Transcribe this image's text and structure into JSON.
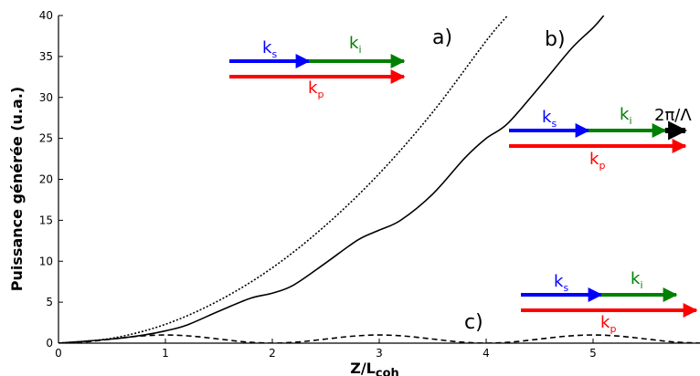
{
  "chart_data": {
    "type": "line",
    "xlabel_main": "Z/L",
    "xlabel_sub": "coh",
    "ylabel": "Puissance générée (u.a.)",
    "xlim": [
      0,
      6
    ],
    "ylim": [
      0,
      40
    ],
    "xticks": [
      0,
      1,
      2,
      3,
      4,
      5
    ],
    "yticks": [
      0,
      5,
      10,
      15,
      20,
      25,
      30,
      35,
      40
    ],
    "grid": false,
    "series": [
      {
        "name": "a)",
        "style": "dotted",
        "color": "#000000",
        "x": [
          0,
          0.5,
          1,
          1.5,
          2,
          2.5,
          3,
          3.5,
          4,
          4.2
        ],
        "y": [
          0,
          0.6,
          2.3,
          5.2,
          9.2,
          14.4,
          20.7,
          28.2,
          36.9,
          40
        ]
      },
      {
        "name": "b)",
        "style": "solid",
        "color": "#000000",
        "x": [
          0,
          0.5,
          0.8,
          1,
          1.2,
          1.5,
          1.8,
          2,
          2.2,
          2.5,
          2.8,
          3,
          3.2,
          3.5,
          3.8,
          4,
          4.2,
          4.5,
          4.8,
          5,
          5.1
        ],
        "y": [
          0,
          0.5,
          1.0,
          1.5,
          2.2,
          3.9,
          5.5,
          6.1,
          7.1,
          9.8,
          12.6,
          13.8,
          15.0,
          18.2,
          22.6,
          25.0,
          26.8,
          31.3,
          36.0,
          38.5,
          40
        ]
      },
      {
        "name": "c)",
        "style": "dashed",
        "color": "#000000",
        "x": [
          0,
          0.25,
          0.5,
          0.75,
          1,
          1.25,
          1.5,
          1.75,
          2,
          2.25,
          2.5,
          2.75,
          3,
          3.25,
          3.5,
          3.75,
          4,
          4.25,
          4.5,
          4.75,
          5,
          5.25,
          5.5,
          5.75,
          6
        ],
        "y": [
          0,
          0.15,
          0.5,
          0.85,
          1.0,
          0.85,
          0.5,
          0.15,
          0,
          0.15,
          0.5,
          0.85,
          1.0,
          0.85,
          0.5,
          0.15,
          0,
          0.15,
          0.5,
          0.85,
          1.0,
          0.85,
          0.5,
          0.15,
          0
        ]
      }
    ],
    "annotations": [
      {
        "id": "a",
        "curve_label": "a)",
        "vectors": [
          {
            "main": "k",
            "sub": "s",
            "color": "#0000ff"
          },
          {
            "main": "k",
            "sub": "i",
            "color": "#008000"
          },
          {
            "main": "k",
            "sub": "p",
            "color": "#ff0000"
          }
        ]
      },
      {
        "id": "b",
        "curve_label": "b)",
        "vectors": [
          {
            "main": "k",
            "sub": "s",
            "color": "#0000ff"
          },
          {
            "main": "k",
            "sub": "i",
            "color": "#008000"
          },
          {
            "main": "2π/Λ",
            "sub": "",
            "color": "#000000"
          },
          {
            "main": "k",
            "sub": "p",
            "color": "#ff0000"
          }
        ]
      },
      {
        "id": "c",
        "curve_label": "c)",
        "vectors": [
          {
            "main": "k",
            "sub": "s",
            "color": "#0000ff"
          },
          {
            "main": "k",
            "sub": "i",
            "color": "#008000"
          },
          {
            "main": "k",
            "sub": "p",
            "color": "#ff0000"
          }
        ]
      }
    ]
  }
}
